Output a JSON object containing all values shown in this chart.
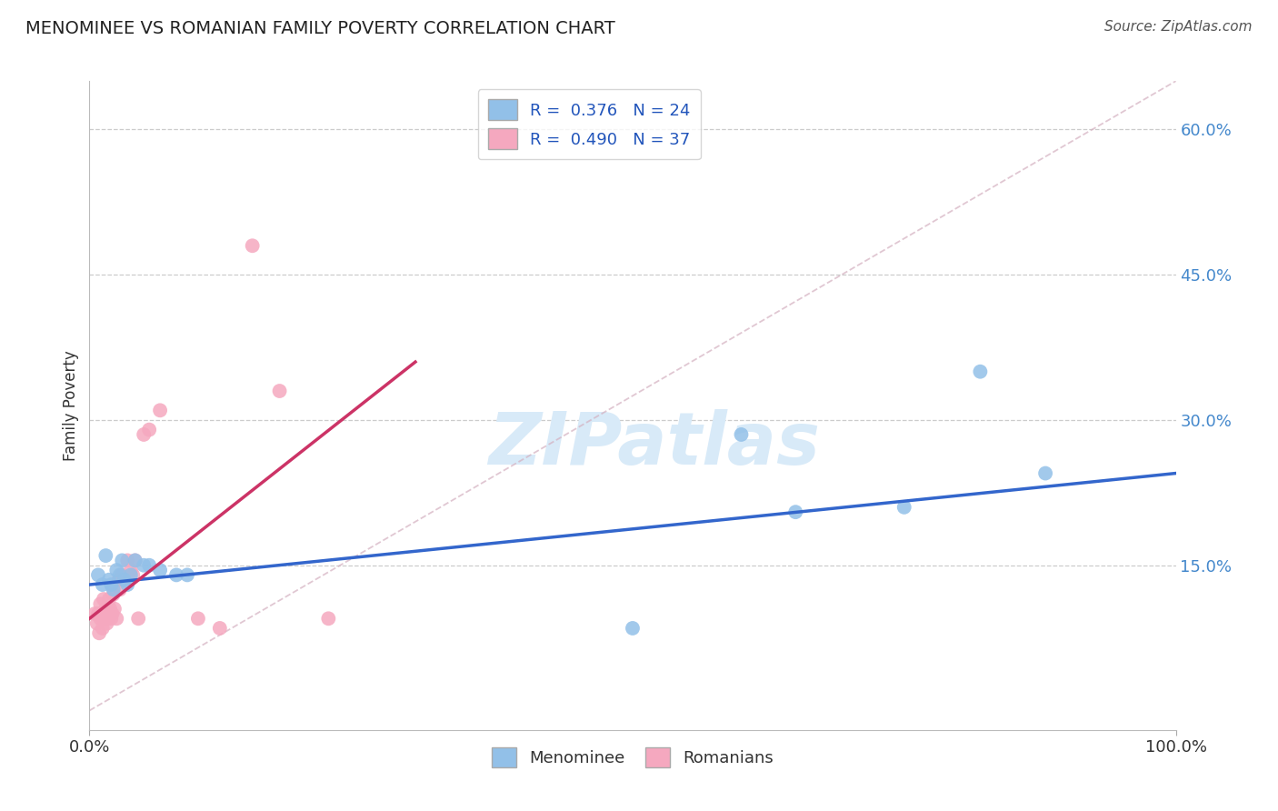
{
  "title": "MENOMINEE VS ROMANIAN FAMILY POVERTY CORRELATION CHART",
  "source": "Source: ZipAtlas.com",
  "ylabel": "Family Poverty",
  "y_ticks": [
    0.0,
    0.15,
    0.3,
    0.45,
    0.6
  ],
  "y_tick_labels": [
    "",
    "15.0%",
    "30.0%",
    "45.0%",
    "60.0%"
  ],
  "xlim": [
    0.0,
    1.0
  ],
  "ylim": [
    -0.02,
    0.65
  ],
  "menominee_R": 0.376,
  "menominee_N": 24,
  "romanians_R": 0.49,
  "romanians_N": 37,
  "menominee_color": "#92c0e8",
  "romanians_color": "#f5a8bf",
  "menominee_line_color": "#3366cc",
  "romanians_line_color": "#cc3366",
  "watermark_color": "#d8eaf8",
  "menominee_x": [
    0.008,
    0.012,
    0.015,
    0.018,
    0.02,
    0.022,
    0.025,
    0.028,
    0.03,
    0.032,
    0.035,
    0.038,
    0.042,
    0.05,
    0.055,
    0.065,
    0.08,
    0.09,
    0.5,
    0.6,
    0.65,
    0.75,
    0.82,
    0.88
  ],
  "menominee_y": [
    0.14,
    0.13,
    0.16,
    0.135,
    0.13,
    0.125,
    0.145,
    0.14,
    0.155,
    0.135,
    0.13,
    0.14,
    0.155,
    0.15,
    0.15,
    0.145,
    0.14,
    0.14,
    0.085,
    0.285,
    0.205,
    0.21,
    0.35,
    0.245
  ],
  "romanians_x": [
    0.005,
    0.007,
    0.008,
    0.009,
    0.01,
    0.01,
    0.011,
    0.012,
    0.013,
    0.013,
    0.015,
    0.016,
    0.017,
    0.018,
    0.019,
    0.02,
    0.021,
    0.022,
    0.023,
    0.025,
    0.027,
    0.028,
    0.03,
    0.032,
    0.035,
    0.038,
    0.04,
    0.042,
    0.045,
    0.05,
    0.055,
    0.065,
    0.1,
    0.12,
    0.15,
    0.175,
    0.22
  ],
  "romanians_y": [
    0.1,
    0.09,
    0.1,
    0.08,
    0.11,
    0.095,
    0.1,
    0.085,
    0.095,
    0.115,
    0.105,
    0.09,
    0.095,
    0.115,
    0.105,
    0.095,
    0.1,
    0.12,
    0.105,
    0.095,
    0.135,
    0.125,
    0.14,
    0.135,
    0.155,
    0.145,
    0.14,
    0.155,
    0.095,
    0.285,
    0.29,
    0.31,
    0.095,
    0.085,
    0.48,
    0.33,
    0.095
  ],
  "menominee_line_x": [
    0.0,
    1.0
  ],
  "menominee_line_y": [
    0.13,
    0.245
  ],
  "romanians_line_x": [
    0.0,
    0.3
  ],
  "romanians_line_y": [
    0.095,
    0.36
  ],
  "diag_line_x": [
    0.0,
    1.0
  ],
  "diag_line_y": [
    0.0,
    0.65
  ]
}
